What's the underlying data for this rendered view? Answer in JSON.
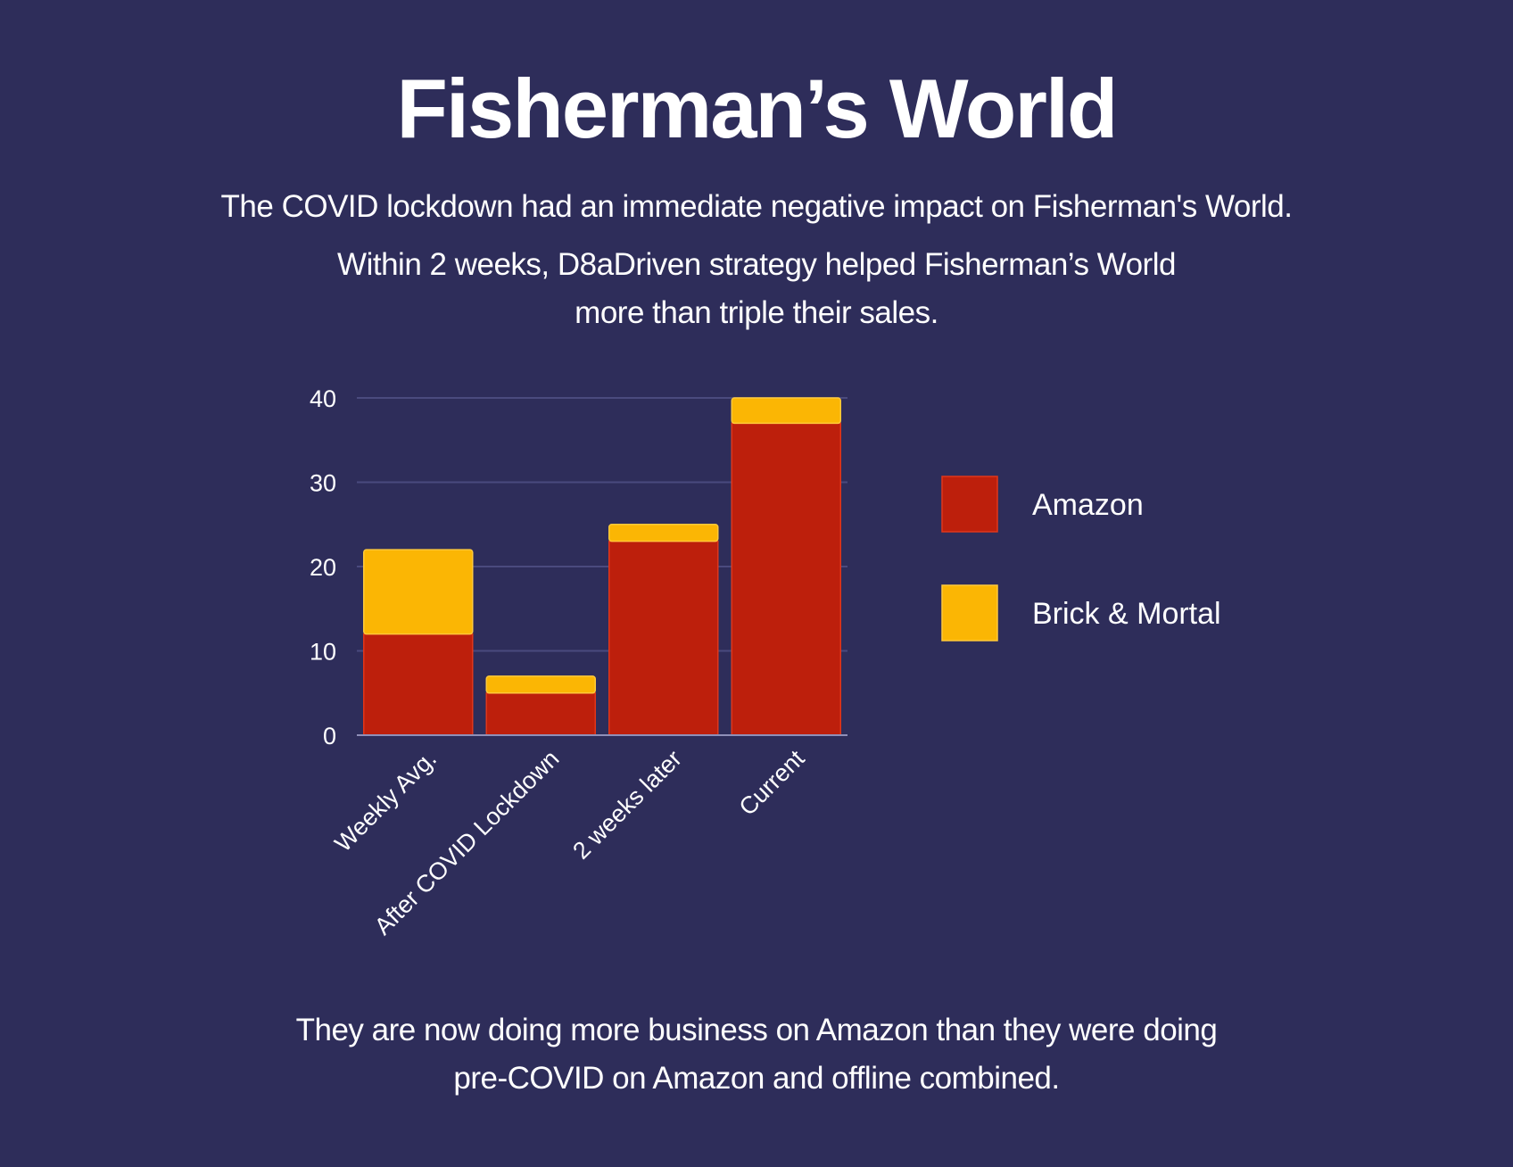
{
  "heading": "Fisherman’s World",
  "intro": "The COVID lockdown had an immediate negative impact on Fisherman's World.",
  "result": {
    "line1": "Within 2 weeks, D8aDriven strategy helped Fisherman’s World",
    "line2": "more than triple their sales."
  },
  "conclusion": {
    "line1": "They are now doing more business on Amazon than they were doing",
    "line2": "pre-COVID on Amazon and offline combined."
  },
  "chart_data": {
    "type": "bar",
    "stacked": true,
    "categories": [
      "Weekly Avg.",
      "After COVID Lockdown",
      "2 weeks later",
      "Current"
    ],
    "series": [
      {
        "name": "Amazon",
        "values": [
          12,
          5,
          23,
          37
        ],
        "color": "#bd1f0c"
      },
      {
        "name": "Brick & Mortal",
        "values": [
          10,
          2,
          2,
          3
        ],
        "color": "#fbb604"
      }
    ],
    "ylim": [
      0,
      40
    ],
    "yticks": [
      0,
      10,
      20,
      30,
      40
    ],
    "grid": true,
    "legend_position": "right"
  }
}
